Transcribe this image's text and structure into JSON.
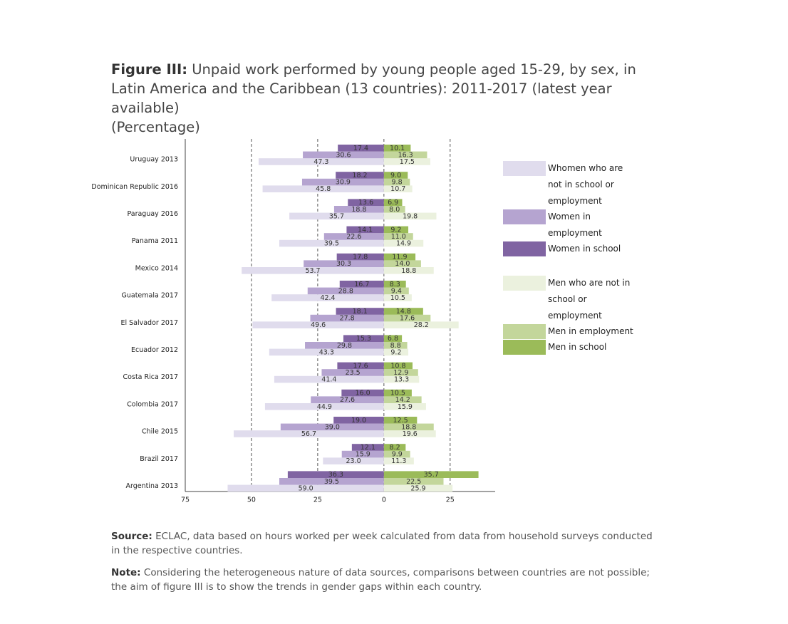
{
  "chart_data": {
    "type": "diverging-bar",
    "figure_label": "Figure III:",
    "title": "Unpaid work performed by young people aged 15-29, by sex, in Latin America and the Caribbean (13 countries): 2011-2017 (latest year available)",
    "subtitle": "(Percentage)",
    "categories": [
      "Uruguay 2013",
      "Dominican Republic 2016",
      "Paraguay 2016",
      "Panama 2011",
      "Mexico 2014",
      "Guatemala 2017",
      "El Salvador 2017",
      "Ecuador 2012",
      "Costa Rica 2017",
      "Colombia 2017",
      "Chile 2015",
      "Brazil 2017",
      "Argentina 2013"
    ],
    "series": [
      {
        "name": "Whomen who are not in school or employment",
        "color": "#e0dced",
        "values": [
          -47.3,
          -45.8,
          -35.7,
          -39.5,
          -53.7,
          -42.4,
          -49.6,
          -43.3,
          -41.4,
          -44.9,
          -56.7,
          -23.0,
          -59.0
        ],
        "value_labels": [
          "47.3",
          "45.8",
          "35.7",
          "39.5",
          "53.7",
          "42.4",
          "49.6",
          "43.3",
          "41.4",
          "44.9",
          "56.7",
          "23.0",
          "59.0"
        ]
      },
      {
        "name": "Women in employment",
        "color": "#b5a4d0",
        "values": [
          -30.6,
          -30.9,
          -18.8,
          -22.6,
          -30.3,
          -28.8,
          -27.8,
          -29.8,
          -23.5,
          -27.6,
          -39.0,
          -15.9,
          -39.5
        ],
        "value_labels": [
          "30.6",
          "30.9",
          "18.8",
          "22.6",
          "30.3",
          "28.8",
          "27.8",
          "29.8",
          "23.5",
          "27.6",
          "39.0",
          "15.9",
          "39.5"
        ]
      },
      {
        "name": "Women in school",
        "color": "#8064a2",
        "values": [
          -17.4,
          -18.2,
          -13.6,
          -14.1,
          -17.8,
          -16.7,
          -18.1,
          -15.3,
          -17.6,
          -16.0,
          -19.0,
          -12.1,
          -36.3
        ],
        "value_labels": [
          "17.4",
          "18.2",
          "13.6",
          "14.1",
          "17.8",
          "16.7",
          "18.1",
          "15.3",
          "17.6",
          "16.0",
          "19.0",
          "12.1",
          "36.3"
        ]
      },
      {
        "name": "Men who are not in school or employment",
        "color": "#ebf1de",
        "values": [
          17.5,
          10.7,
          19.8,
          14.9,
          18.8,
          10.5,
          28.2,
          9.2,
          13.3,
          15.9,
          19.6,
          11.3,
          25.9
        ],
        "value_labels": [
          "17.5",
          "10.7",
          "19.8",
          "14.9",
          "18.8",
          "10.5",
          "28.2",
          "9.2",
          "13.3",
          "15.9",
          "19.6",
          "11.3",
          "25.9"
        ]
      },
      {
        "name": "Men in employment",
        "color": "#c3d69b",
        "values": [
          16.3,
          9.8,
          8.0,
          11.0,
          14.0,
          9.4,
          17.6,
          8.8,
          12.9,
          14.2,
          18.8,
          9.9,
          22.5
        ],
        "value_labels": [
          "16.3",
          "9.8",
          "8.0",
          "11.0",
          "14.0",
          "9.4",
          "17.6",
          "8.8",
          "12.9",
          "14.2",
          "18.8",
          "9.9",
          "22.5"
        ]
      },
      {
        "name": "Men in school",
        "color": "#9bbb59",
        "values": [
          10.1,
          9.0,
          6.9,
          9.2,
          11.9,
          8.3,
          14.8,
          6.8,
          10.8,
          10.5,
          12.5,
          8.2,
          35.7
        ],
        "value_labels": [
          "10.1",
          "9.0",
          "6.9",
          "9.2",
          "11.9",
          "8.3",
          "14.8",
          "6.8",
          "10.8",
          "10.5",
          "12.5",
          "8.2",
          "35.7"
        ]
      }
    ],
    "xlim": [
      -75,
      42
    ],
    "xticks": [
      {
        "value": -75,
        "label": "75"
      },
      {
        "value": -50,
        "label": "50"
      },
      {
        "value": -25,
        "label": "25"
      },
      0,
      25
    ],
    "grid": true
  },
  "source": {
    "label": "Source:",
    "text": "ECLAC, data based on hours worked per week calculated from data from household surveys conducted in the respective countries."
  },
  "note": {
    "label": "Note:",
    "text": "Considering the heterogeneous nature of data sources, comparisons between countries are not possible; the aim of figure III is to show the trends in gender gaps within each country."
  }
}
